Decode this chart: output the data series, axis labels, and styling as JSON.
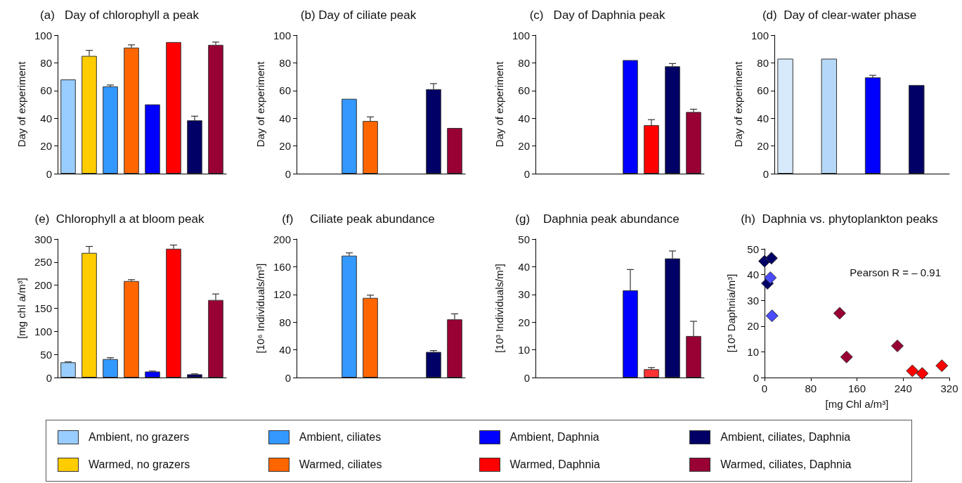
{
  "chart_data": [
    {
      "type": "bar",
      "title": "(a)   Day of chlorophyll a peak",
      "ylabel": "Day of experiment",
      "categories": [
        null,
        null,
        null,
        null,
        null,
        null,
        null,
        null
      ],
      "stacked": true,
      "ylim": [
        0,
        100
      ],
      "yticks": [
        0,
        20,
        40,
        60,
        80,
        100
      ],
      "legend": "bottom",
      "series": [
        {
          "name": "Ambient, no grazers",
          "color": "#99ccff",
          "values": [
            68,
            null,
            null,
            null,
            null,
            null,
            null,
            null
          ]
        },
        {
          "name": "Warmed, no grazers",
          "color": "#ffcc00",
          "values": [
            null,
            85,
            null,
            null,
            null,
            null,
            null,
            null
          ],
          "errors": [
            null,
            [
              85,
              89
            ],
            null,
            null,
            null,
            null,
            null,
            null
          ]
        },
        {
          "name": "Ambient, ciliates",
          "color": "#3399ff",
          "values": [
            null,
            null,
            63,
            null,
            null,
            null,
            null,
            null
          ],
          "errors": [
            null,
            null,
            [
              63,
              64
            ],
            null,
            null,
            null,
            null,
            null
          ]
        },
        {
          "name": "Warmed, ciliates",
          "color": "#ff6600",
          "values": [
            null,
            null,
            null,
            91,
            null,
            null,
            null,
            null
          ],
          "errors": [
            null,
            null,
            null,
            [
              91,
              93
            ],
            null,
            null,
            null,
            null
          ]
        },
        {
          "name": "Ambient, Daphnia",
          "color": "#0000ff",
          "values": [
            null,
            null,
            null,
            null,
            50,
            null,
            null,
            null
          ]
        },
        {
          "name": "Warmed, Daphnia",
          "color": "#ff0000",
          "values": [
            null,
            null,
            null,
            null,
            null,
            95,
            null,
            null
          ]
        },
        {
          "name": "Ambient, ciliates, Daphnia",
          "color": "#000066",
          "values": [
            null,
            null,
            null,
            null,
            null,
            null,
            38.5,
            null
          ],
          "errors": [
            null,
            null,
            null,
            null,
            null,
            null,
            [
              38.5,
              41.5
            ],
            null
          ]
        },
        {
          "name": "Warmed, ciliates, Daphnia",
          "color": "#990033",
          "values": [
            null,
            null,
            null,
            null,
            null,
            null,
            null,
            93
          ],
          "errors": [
            null,
            null,
            null,
            null,
            null,
            null,
            null,
            [
              93,
              95
            ]
          ]
        }
      ]
    },
    {
      "type": "bar",
      "title": "(b) Day of ciliate peak",
      "ylabel": "Day of experiment",
      "categories": [
        null,
        null,
        null,
        null,
        null,
        null,
        null,
        null
      ],
      "stacked": true,
      "ylim": [
        0,
        100
      ],
      "yticks": [
        0,
        20,
        40,
        60,
        80,
        100
      ],
      "series": [
        {
          "color": "#3399ff",
          "values": [
            null,
            null,
            54,
            null,
            null,
            null,
            null,
            null
          ]
        },
        {
          "color": "#ff6600",
          "values": [
            null,
            null,
            null,
            38,
            null,
            null,
            null,
            null
          ],
          "errors": [
            null,
            null,
            null,
            [
              38,
              41
            ],
            null,
            null,
            null,
            null
          ]
        },
        {
          "color": "#000066",
          "values": [
            null,
            null,
            null,
            null,
            null,
            null,
            61,
            null
          ],
          "errors": [
            null,
            null,
            null,
            null,
            null,
            null,
            [
              61,
              65
            ],
            null
          ]
        },
        {
          "color": "#990033",
          "values": [
            null,
            null,
            null,
            null,
            null,
            null,
            null,
            33
          ]
        }
      ]
    },
    {
      "type": "bar",
      "title": "(c)   Day of Daphnia peak",
      "ylabel": "Day of experiment",
      "categories": [
        null,
        null,
        null,
        null,
        null,
        null,
        null,
        null
      ],
      "stacked": true,
      "ylim": [
        0,
        100
      ],
      "yticks": [
        0,
        20,
        40,
        60,
        80,
        100
      ],
      "series": [
        {
          "color": "#0000ff",
          "values": [
            null,
            null,
            null,
            null,
            82,
            null,
            null,
            null
          ]
        },
        {
          "color": "#ff0000",
          "values": [
            null,
            null,
            null,
            null,
            null,
            35,
            null,
            null
          ],
          "errors": [
            null,
            null,
            null,
            null,
            null,
            [
              35,
              39
            ],
            null,
            null
          ]
        },
        {
          "color": "#000066",
          "values": [
            null,
            null,
            null,
            null,
            null,
            null,
            77.5,
            null
          ],
          "errors": [
            null,
            null,
            null,
            null,
            null,
            null,
            [
              77.5,
              79.5
            ],
            null
          ]
        },
        {
          "color": "#990033",
          "values": [
            null,
            null,
            null,
            null,
            null,
            null,
            null,
            44.5
          ],
          "errors": [
            null,
            null,
            null,
            null,
            null,
            null,
            null,
            [
              44.5,
              46.5
            ]
          ]
        }
      ]
    },
    {
      "type": "bar",
      "title": "(d)  Day of clear-water phase",
      "ylabel": "Day of experiment",
      "categories": [
        null,
        null,
        null,
        null,
        null,
        null,
        null,
        null
      ],
      "stacked": true,
      "ylim": [
        0,
        100
      ],
      "yticks": [
        0,
        20,
        40,
        60,
        80,
        100
      ],
      "series": [
        {
          "color": "#d6eafc",
          "values": [
            83,
            null,
            null,
            null,
            null,
            null,
            null,
            null
          ]
        },
        {
          "color": "#b5d8f8",
          "values": [
            null,
            null,
            83,
            null,
            null,
            null,
            null,
            null
          ]
        },
        {
          "color": "#0000ff",
          "values": [
            null,
            null,
            null,
            null,
            69.5,
            null,
            null,
            null
          ],
          "errors": [
            null,
            null,
            null,
            null,
            [
              69.5,
              71
            ],
            null,
            null,
            null
          ]
        },
        {
          "color": "#000066",
          "values": [
            null,
            null,
            null,
            null,
            null,
            null,
            64,
            null
          ]
        }
      ]
    },
    {
      "type": "bar",
      "title": "(e)  Chlorophyll a at bloom peak",
      "ylabel": "[mg chl a/m³]",
      "categories": [
        null,
        null,
        null,
        null,
        null,
        null,
        null,
        null
      ],
      "stacked": true,
      "ylim": [
        0,
        300
      ],
      "yticks": [
        0,
        50,
        100,
        150,
        200,
        250,
        300
      ],
      "series": [
        {
          "color": "#99ccff",
          "values": [
            33,
            null,
            null,
            null,
            null,
            null,
            null,
            null
          ],
          "errors": [
            [
              33,
              34
            ],
            null,
            null,
            null,
            null,
            null,
            null,
            null
          ]
        },
        {
          "color": "#ffcc00",
          "values": [
            null,
            270,
            null,
            null,
            null,
            null,
            null,
            null
          ],
          "errors": [
            null,
            [
              270,
              284
            ],
            null,
            null,
            null,
            null,
            null,
            null
          ]
        },
        {
          "color": "#3399ff",
          "values": [
            null,
            null,
            40,
            null,
            null,
            null,
            null,
            null
          ],
          "errors": [
            null,
            null,
            [
              40,
              43
            ],
            null,
            null,
            null,
            null,
            null
          ]
        },
        {
          "color": "#ff6600",
          "values": [
            null,
            null,
            null,
            209,
            null,
            null,
            null,
            null
          ],
          "errors": [
            null,
            null,
            null,
            [
              209,
              212
            ],
            null,
            null,
            null,
            null
          ]
        },
        {
          "color": "#0000ff",
          "values": [
            null,
            null,
            null,
            null,
            13,
            null,
            null,
            null
          ],
          "errors": [
            null,
            null,
            null,
            null,
            [
              13,
              14
            ],
            null,
            null,
            null
          ]
        },
        {
          "color": "#ff0000",
          "values": [
            null,
            null,
            null,
            null,
            null,
            279,
            null,
            null
          ],
          "errors": [
            null,
            null,
            null,
            null,
            null,
            [
              279,
              287
            ],
            null,
            null
          ]
        },
        {
          "color": "#000066",
          "values": [
            null,
            null,
            null,
            null,
            null,
            null,
            7,
            null
          ],
          "errors": [
            null,
            null,
            null,
            null,
            null,
            null,
            [
              7,
              8
            ],
            null
          ]
        },
        {
          "color": "#990033",
          "values": [
            null,
            null,
            null,
            null,
            null,
            null,
            null,
            168
          ],
          "errors": [
            null,
            null,
            null,
            null,
            null,
            null,
            null,
            [
              168,
              181
            ]
          ]
        }
      ]
    },
    {
      "type": "bar",
      "title": "(f)     Ciliate peak abundance",
      "ylabel": "[10⁶ Individuals/m³]",
      "categories": [
        null,
        null,
        null,
        null,
        null,
        null,
        null,
        null
      ],
      "stacked": true,
      "ylim": [
        0,
        200
      ],
      "yticks": [
        0,
        40,
        80,
        120,
        160,
        200
      ],
      "series": [
        {
          "color": "#3399ff",
          "values": [
            null,
            null,
            176,
            null,
            null,
            null,
            null,
            null
          ],
          "errors": [
            null,
            null,
            [
              176,
              180
            ],
            null,
            null,
            null,
            null,
            null
          ]
        },
        {
          "color": "#ff6600",
          "values": [
            null,
            null,
            null,
            115,
            null,
            null,
            null,
            null
          ],
          "errors": [
            null,
            null,
            null,
            [
              115,
              119
            ],
            null,
            null,
            null,
            null
          ]
        },
        {
          "color": "#000066",
          "values": [
            null,
            null,
            null,
            null,
            null,
            null,
            37,
            null
          ],
          "errors": [
            null,
            null,
            null,
            null,
            null,
            null,
            [
              37,
              39
            ],
            null
          ]
        },
        {
          "color": "#990033",
          "values": [
            null,
            null,
            null,
            null,
            null,
            null,
            null,
            84
          ],
          "errors": [
            null,
            null,
            null,
            null,
            null,
            null,
            null,
            [
              84,
              92
            ]
          ]
        }
      ]
    },
    {
      "type": "bar",
      "title": "(g)    Daphnia peak abundance",
      "ylabel": "[10³ Individuals/m³]",
      "categories": [
        null,
        null,
        null,
        null,
        null,
        null,
        null,
        null
      ],
      "stacked": true,
      "ylim": [
        0,
        50
      ],
      "yticks": [
        0,
        10,
        20,
        30,
        40,
        50
      ],
      "series": [
        {
          "color": "#0000ff",
          "values": [
            null,
            null,
            null,
            null,
            31.5,
            null,
            null,
            null
          ],
          "errors": [
            null,
            null,
            null,
            null,
            [
              31.5,
              39
            ],
            null,
            null,
            null
          ]
        },
        {
          "color": "#ff3333",
          "values": [
            null,
            null,
            null,
            null,
            null,
            3,
            null,
            null
          ],
          "errors": [
            null,
            null,
            null,
            null,
            null,
            [
              3,
              3.6
            ],
            null,
            null
          ]
        },
        {
          "color": "#000066",
          "values": [
            null,
            null,
            null,
            null,
            null,
            null,
            43,
            null
          ],
          "errors": [
            null,
            null,
            null,
            null,
            null,
            null,
            [
              43,
              45.7
            ],
            null
          ]
        },
        {
          "color": "#990033",
          "values": [
            null,
            null,
            null,
            null,
            null,
            null,
            null,
            15
          ],
          "errors": [
            null,
            null,
            null,
            null,
            null,
            null,
            null,
            [
              15,
              20.3
            ]
          ]
        }
      ]
    },
    {
      "type": "scatter",
      "title": "(h)  Daphnia vs. phytoplankton peaks",
      "xlabel": "[mg Chl a/m³]",
      "ylabel": "[10³ Daphnia/m³]",
      "marker": "diamond",
      "xlim": [
        0,
        320
      ],
      "xticks": [
        0,
        80,
        160,
        240,
        320
      ],
      "ylim": [
        0,
        50
      ],
      "yticks": [
        0,
        10,
        20,
        30,
        40,
        50
      ],
      "annotations": [
        "Pearson R = – 0.91"
      ],
      "series": [
        {
          "color": "#000066",
          "x": [
            0,
            12,
            5
          ],
          "values": [
            45.2,
            46.4,
            36.6
          ]
        },
        {
          "color": "#4a4aff",
          "x": [
            10,
            13
          ],
          "values": [
            38.8,
            24
          ]
        },
        {
          "color": "#990033",
          "x": [
            130,
            142,
            230
          ],
          "values": [
            25,
            8,
            12.3
          ]
        },
        {
          "color": "#ff0000",
          "x": [
            256,
            273,
            307
          ],
          "values": [
            2.6,
            1.6,
            4.6
          ]
        }
      ]
    }
  ]
}
